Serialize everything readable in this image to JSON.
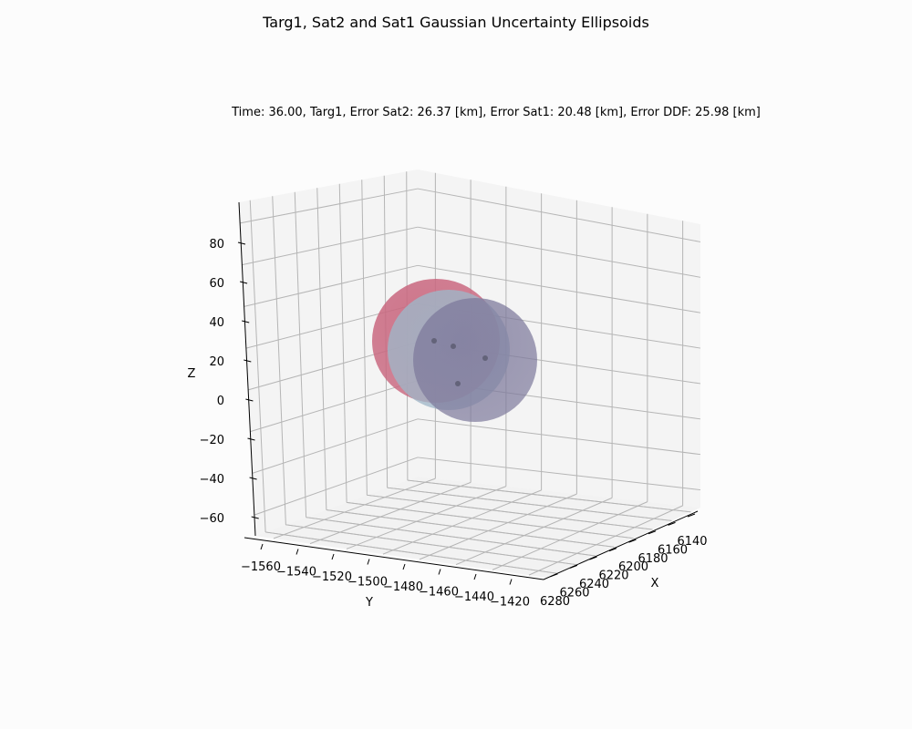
{
  "chart_data": {
    "type": "scatter",
    "title": "Targ1, Sat2 and Sat1 Gaussian Uncertainty Ellipsoids",
    "subtitle": "Time: 36.00, Targ1, Error Sat2: 26.37 [km], Error Sat1: 20.48 [km], Error DDF: 25.98 [km]",
    "xlabel": "X",
    "ylabel": "Y",
    "zlabel": "Z",
    "x_ticks": [
      "6140",
      "6160",
      "6180",
      "6200",
      "6220",
      "6240",
      "6260",
      "6280"
    ],
    "y_ticks": [
      "−1560",
      "−1540",
      "−1520",
      "−1500",
      "−1480",
      "−1460",
      "−1440",
      "−1420"
    ],
    "z_ticks": [
      "80",
      "60",
      "40",
      "20",
      "0",
      "−20",
      "−40",
      "−60"
    ],
    "xlim": [
      6130,
      6290
    ],
    "ylim": [
      -1570,
      -1410
    ],
    "zlim": [
      -70,
      100
    ],
    "grid": true,
    "ellipsoids": [
      {
        "color": "#c9677f",
        "opacity": 0.8
      },
      {
        "color": "#9fb6c7",
        "opacity": 0.75
      },
      {
        "color": "#7e7a9c",
        "opacity": 0.7
      }
    ]
  }
}
